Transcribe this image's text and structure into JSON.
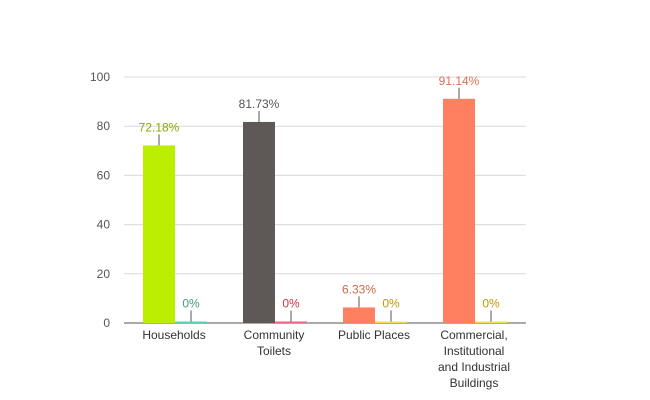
{
  "chart_data": {
    "type": "bar",
    "title": "",
    "xlabel": "",
    "ylabel": "",
    "ylim": [
      0,
      100
    ],
    "yticks": [
      0,
      20,
      40,
      60,
      80,
      100
    ],
    "grid": true,
    "legend": "none",
    "categories": [
      [
        "Households"
      ],
      [
        "Community",
        "Toilets"
      ],
      [
        "Public Places"
      ],
      [
        "Commercial,",
        "Institutional",
        "and Industrial",
        "Buildings"
      ]
    ],
    "bars": [
      [
        {
          "value": 72.18,
          "label": "72.18%",
          "color": "#bbee00",
          "label_color": "#88aa00"
        },
        {
          "value": 0,
          "label": "0%",
          "color": "#66ccbb",
          "label_color": "#449988"
        }
      ],
      [
        {
          "value": 81.73,
          "label": "81.73%",
          "color": "#5e5856",
          "label_color": "#555555"
        },
        {
          "value": 0,
          "label": "0%",
          "color": "#ee6688",
          "label_color": "#cc3344"
        }
      ],
      [
        {
          "value": 6.33,
          "label": "6.33%",
          "color": "#ff8060",
          "label_color": "#c86e48"
        },
        {
          "value": 0,
          "label": "0%",
          "color": "#eedd55",
          "label_color": "#bb9900"
        }
      ],
      [
        {
          "value": 91.14,
          "label": "91.14%",
          "color": "#ff8060",
          "label_color": "#e07050"
        },
        {
          "value": 0,
          "label": "0%",
          "color": "#eedd55",
          "label_color": "#bb9900"
        }
      ]
    ]
  }
}
